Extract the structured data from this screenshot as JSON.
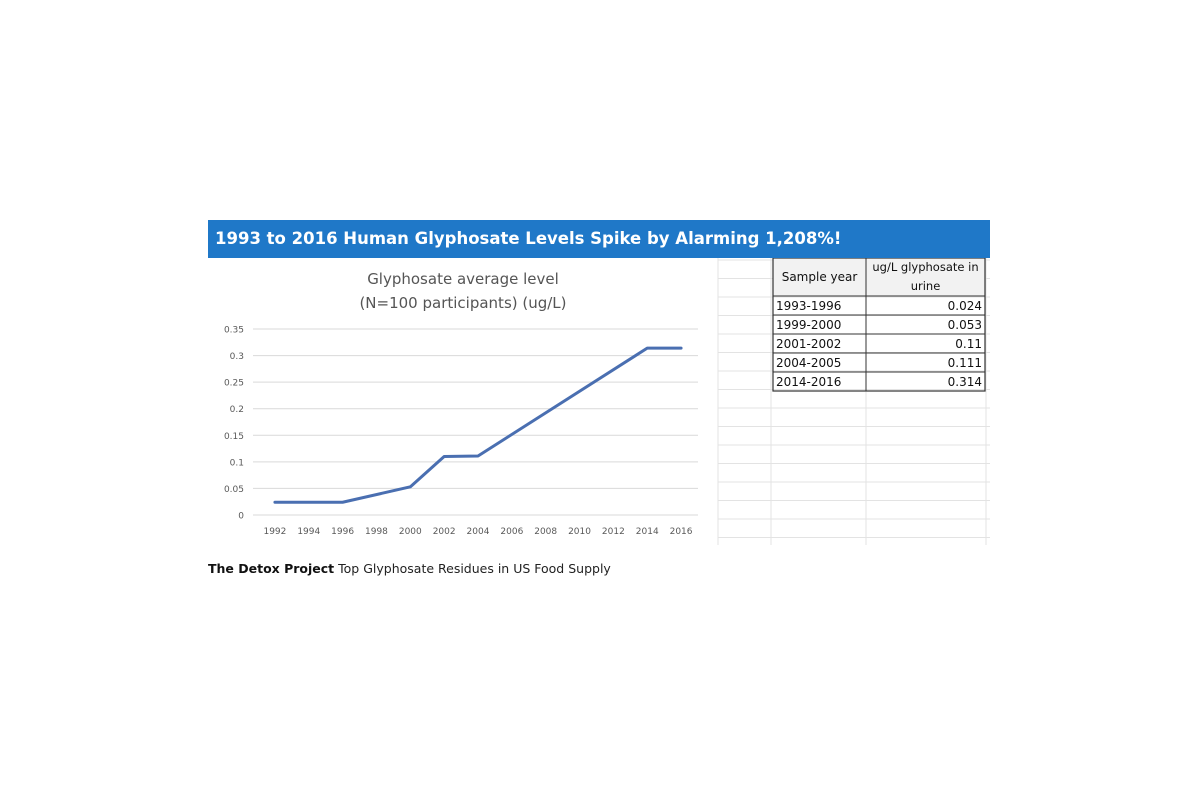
{
  "banner": {
    "title": "1993 to 2016 Human Glyphosate Levels Spike by Alarming 1,208%!"
  },
  "chart_data": {
    "type": "line",
    "title": "Glyphosate average level",
    "subtitle": "(N=100 participants) (ug/L)",
    "xlabel": "",
    "ylabel": "",
    "x_ticks": [
      "1992",
      "1994",
      "1996",
      "1998",
      "2000",
      "2002",
      "2004",
      "2006",
      "2008",
      "2010",
      "2012",
      "2014",
      "2016"
    ],
    "y_ticks": [
      "0",
      "0.05",
      "0.1",
      "0.15",
      "0.2",
      "0.25",
      "0.3",
      "0.35"
    ],
    "xlim": [
      1991,
      2017
    ],
    "ylim": [
      0,
      0.35
    ],
    "grid": true,
    "series": [
      {
        "x": [
          1992,
          1996,
          2000,
          2002,
          2004,
          2014,
          2016
        ],
        "y": [
          0.024,
          0.024,
          0.053,
          0.11,
          0.111,
          0.314,
          0.314
        ],
        "color": "#4a6fb1"
      }
    ]
  },
  "table": {
    "headers": [
      "Sample year",
      "ug/L glyphosate in urine"
    ],
    "header_line1": "ug/L glyphosate in",
    "header_line2": "urine",
    "rows": [
      {
        "year": "1993-1996",
        "value": "0.024"
      },
      {
        "year": "1999-2000",
        "value": "0.053"
      },
      {
        "year": "2001-2002",
        "value": "0.11"
      },
      {
        "year": "2004-2005",
        "value": "0.111"
      },
      {
        "year": "2014-2016",
        "value": "0.314"
      }
    ]
  },
  "caption": {
    "brand": "The Detox Project",
    "text": "Top Glyphosate Residues in US Food Supply"
  }
}
